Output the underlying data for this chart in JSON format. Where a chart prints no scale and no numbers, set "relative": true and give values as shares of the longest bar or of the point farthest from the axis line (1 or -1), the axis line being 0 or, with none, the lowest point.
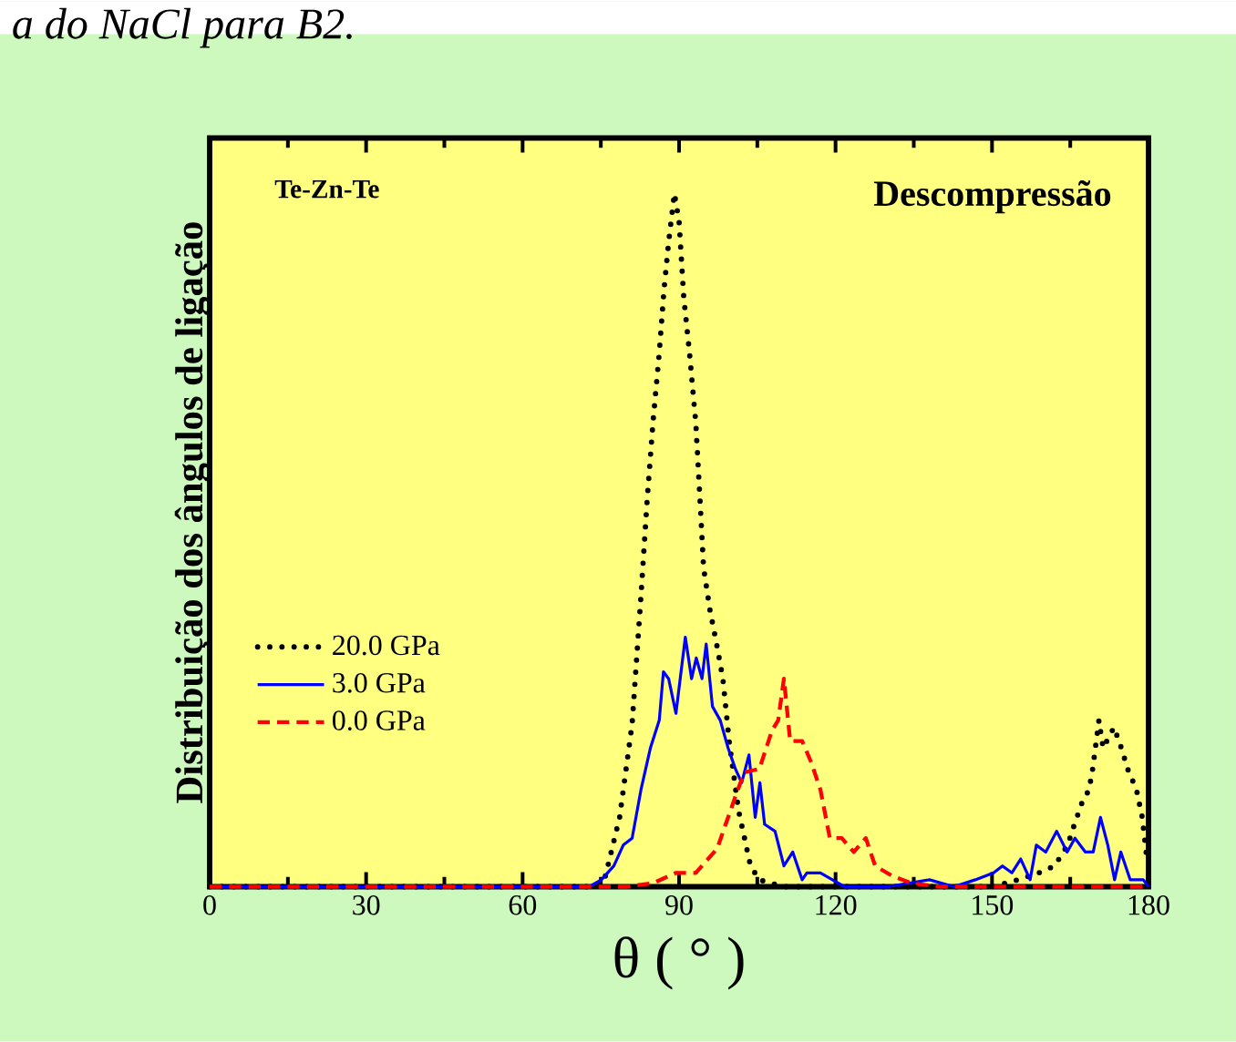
{
  "chart_data": {
    "type": "line",
    "relative": true,
    "xlabel": "θ ( ° )",
    "ylabel": "Distribuição dos ângulos de ligação",
    "annotations": [
      "a do NaCl para B2.",
      "Te-Zn-Te",
      "Descompressão"
    ],
    "xlim": [
      0,
      180
    ],
    "xticks": [
      0,
      30,
      60,
      90,
      120,
      150,
      180
    ],
    "legend": "left",
    "series": [
      {
        "name": "20.0 GPa",
        "color": "#000000",
        "line_style": "dotted",
        "x": [
          0,
          70,
          74,
          75.7,
          78.6,
          81,
          82.7,
          83.9,
          85,
          86.2,
          87.1,
          88,
          89.1,
          90,
          90.9,
          92,
          93.2,
          94,
          94.7,
          95.9,
          97.2,
          98.4,
          99.6,
          101.4,
          103.7,
          105.4,
          110,
          150,
          155,
          159,
          162,
          164.5,
          165.8,
          167.2,
          168.6,
          169.3,
          170.5,
          171.3,
          173.4,
          174.8,
          176,
          177.7,
          178.8,
          179.7
        ],
        "values": [
          0,
          0,
          0,
          0.01,
          0.1,
          0.235,
          0.42,
          0.56,
          0.67,
          0.77,
          0.86,
          0.93,
          1,
          0.96,
          0.85,
          0.77,
          0.67,
          0.56,
          0.46,
          0.4,
          0.35,
          0.3,
          0.21,
          0.11,
          0.03,
          0.01,
          0,
          0,
          0.01,
          0.02,
          0.03,
          0.06,
          0.09,
          0.12,
          0.14,
          0.17,
          0.24,
          0.2,
          0.23,
          0.2,
          0.17,
          0.14,
          0.1,
          0.04
        ]
      },
      {
        "name": "3.0 GPa",
        "color": "#0000ff",
        "line_style": "solid",
        "x": [
          0,
          72.8,
          75.1,
          77.5,
          79.3,
          81,
          82.7,
          84.5,
          86.2,
          87,
          88,
          89.4,
          91.2,
          92.4,
          93.3,
          94.4,
          95.2,
          96.4,
          97.9,
          99.4,
          100.8,
          102,
          103.4,
          104.6,
          105.5,
          106.4,
          108.4,
          110.1,
          111.8,
          113.6,
          114.5,
          117.1,
          119.4,
          121.7,
          130,
          138,
          142.7,
          146.8,
          150.3,
          152,
          153.8,
          155.5,
          157.3,
          158.5,
          160.3,
          162.4,
          164.4,
          165.9,
          167.9,
          169.4,
          170.8,
          172.2,
          173.5,
          174.7,
          176.5,
          179,
          180
        ],
        "values": [
          0,
          0,
          0.01,
          0.03,
          0.06,
          0.07,
          0.14,
          0.2,
          0.24,
          0.31,
          0.3,
          0.25,
          0.36,
          0.3,
          0.33,
          0.3,
          0.35,
          0.26,
          0.24,
          0.2,
          0.17,
          0.15,
          0.19,
          0.1,
          0.15,
          0.09,
          0.08,
          0.03,
          0.05,
          0.01,
          0.02,
          0.02,
          0.01,
          0,
          0,
          0.01,
          0,
          0.01,
          0.02,
          0.03,
          0.02,
          0.04,
          0.01,
          0.06,
          0.05,
          0.08,
          0.05,
          0.07,
          0.05,
          0.05,
          0.1,
          0.06,
          0.01,
          0.05,
          0.01,
          0.01,
          0
        ]
      },
      {
        "name": "0.0 GPa",
        "color": "#ff0000",
        "line_style": "dashed",
        "x": [
          0,
          80,
          85,
          89.4,
          93.2,
          97.3,
          100.8,
          102.5,
          105.4,
          107.8,
          109,
          110.1,
          111.3,
          113.6,
          115.3,
          117.1,
          118.9,
          121.2,
          123.5,
          125.8,
          127.6,
          131,
          134.6,
          140,
          180
        ],
        "values": [
          0,
          0,
          0.005,
          0.02,
          0.02,
          0.055,
          0.13,
          0.165,
          0.17,
          0.225,
          0.24,
          0.3,
          0.21,
          0.21,
          0.18,
          0.14,
          0.07,
          0.07,
          0.05,
          0.07,
          0.03,
          0.015,
          0.005,
          0,
          0
        ]
      }
    ]
  }
}
